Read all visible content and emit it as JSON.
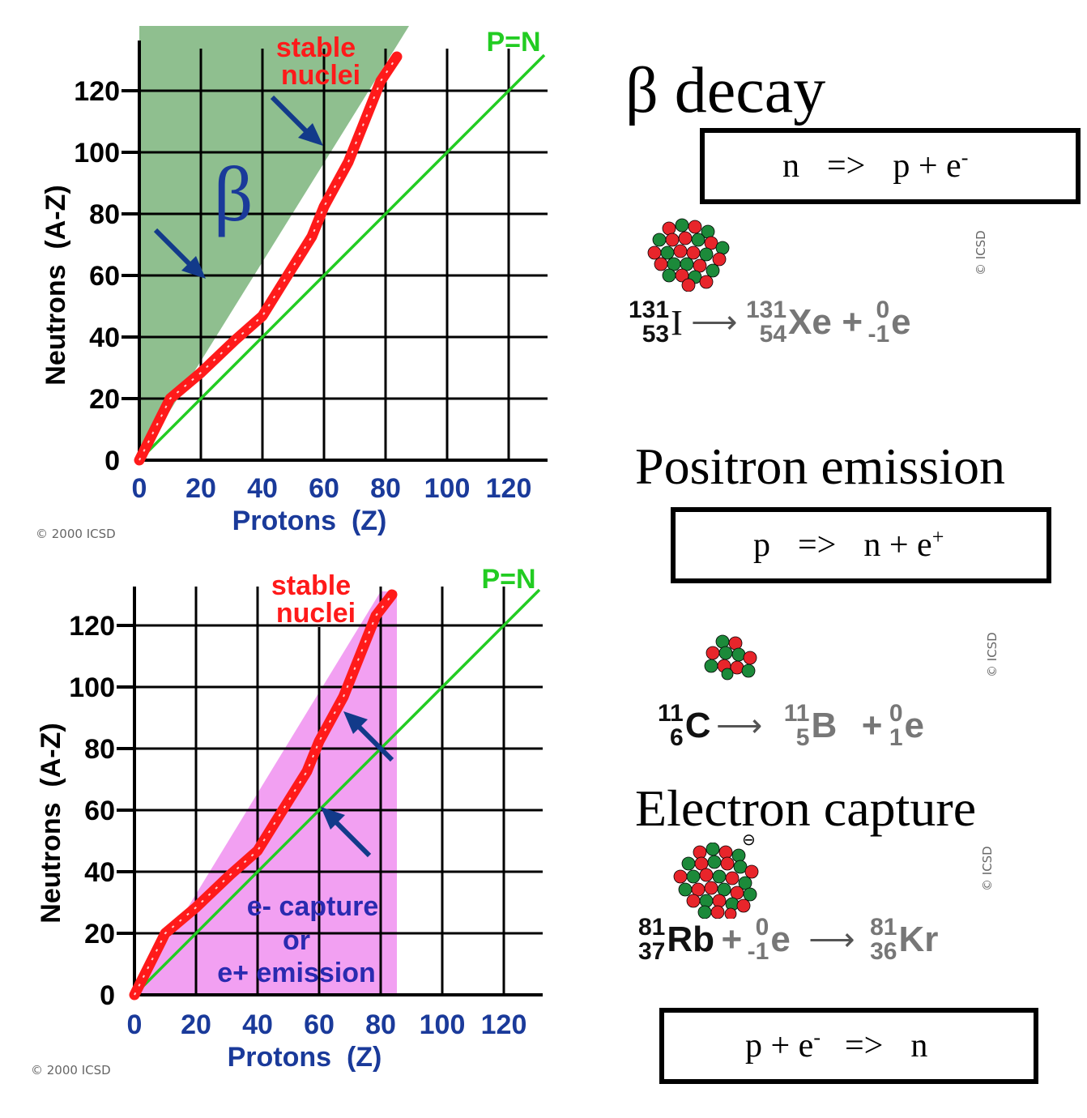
{
  "charts": [
    {
      "stable_label_1": "stable",
      "stable_label_2": "nuclei",
      "pn_label": "P=N",
      "region_label": "β",
      "xlabel": "Protons  (Z)",
      "ylabel": "Neutrons  (A-Z)",
      "xticks": [
        "0",
        "20",
        "40",
        "60",
        "80",
        "100",
        "120"
      ],
      "yticks": [
        "0",
        "20",
        "40",
        "60",
        "80",
        "100",
        "120"
      ],
      "copyright": "© 2000 ICSD",
      "region_color": "#8fbf8f"
    },
    {
      "stable_label_1": "stable",
      "stable_label_2": "nuclei",
      "pn_label": "P=N",
      "region_lines": [
        "e- capture",
        "or",
        "e+ emission"
      ],
      "xlabel": "Protons  (Z)",
      "ylabel": "Neutrons  (A-Z)",
      "xticks": [
        "0",
        "20",
        "40",
        "60",
        "80",
        "100",
        "120"
      ],
      "yticks": [
        "0",
        "20",
        "40",
        "60",
        "80",
        "100",
        "120"
      ],
      "copyright": "© 2000 ICSD",
      "region_color": "#f2a0f2"
    }
  ],
  "beta": {
    "title": "β decay",
    "box": {
      "left": "n",
      "arrow": "=>",
      "right": "p + e",
      "sup": "-"
    },
    "eq": {
      "a1_mass": "131",
      "a1_num": "53",
      "a1_sym": "I",
      "a2_mass": "131",
      "a2_num": "54",
      "a2_sym": "Xe",
      "plus": "+",
      "a3_mass": "0",
      "a3_num": "-1",
      "a3_sym": "e"
    },
    "watermark": "© ICSD"
  },
  "positron": {
    "title": "Positron emission",
    "box": {
      "left": "p",
      "arrow": "=>",
      "right": "n + e",
      "sup": "+"
    },
    "eq": {
      "a1_mass": "11",
      "a1_num": "6",
      "a1_sym": "C",
      "a2_mass": "11",
      "a2_num": "5",
      "a2_sym": "B",
      "plus": "+",
      "a3_mass": "0",
      "a3_num": "1",
      "a3_sym": "e"
    },
    "watermark": "© ICSD"
  },
  "capture": {
    "title": "Electron capture",
    "box": {
      "left": "p + e",
      "sup": "-",
      "arrow": "=>",
      "right": "n"
    },
    "eq": {
      "a1_mass": "81",
      "a1_num": "37",
      "a1_sym": "Rb",
      "plus": "+",
      "a2_mass": "0",
      "a2_num": "-1",
      "a2_sym": "e",
      "a3_mass": "81",
      "a3_num": "36",
      "a3_sym": "Kr"
    },
    "electron_mark": "⊖",
    "watermark": "© ICSD"
  },
  "colors": {
    "axis_blue": "#1a3a9a",
    "stable_red": "#ff1a1a",
    "pn_green": "#22cc22",
    "arrow_blue": "#123a8a"
  }
}
